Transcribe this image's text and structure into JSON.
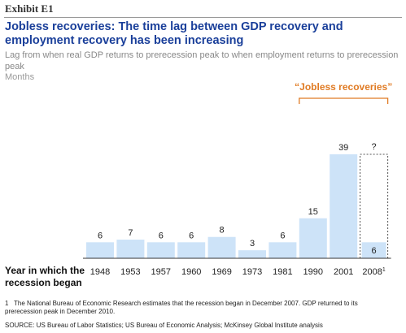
{
  "header": {
    "exhibit": "Exhibit E1",
    "title": "Jobless recoveries: The time lag between GDP recovery and employment recovery has been increasing",
    "subtitle": "Lag from when real GDP returns to prerecession peak to when employment returns to prerecession peak",
    "units": "Months"
  },
  "chart_data": {
    "type": "bar",
    "xlabel": "Year in which the recession began",
    "categories": [
      "1948",
      "1953",
      "1957",
      "1960",
      "1969",
      "1973",
      "1981",
      "1990",
      "2001",
      "2008"
    ],
    "category_footnote_index": 9,
    "category_footnote_mark": "1",
    "values": [
      6,
      7,
      6,
      6,
      8,
      3,
      6,
      15,
      39,
      6
    ],
    "value_labels": [
      "6",
      "7",
      "6",
      "6",
      "8",
      "3",
      "6",
      "15",
      "39",
      "6"
    ],
    "projected_label": "?",
    "ylim": [
      0,
      39
    ],
    "grid": false,
    "bar_color": "#cde3f8",
    "projected_border_color": "#555555",
    "annotation": {
      "text": "“Jobless recoveries”",
      "color": "#e07b24",
      "applies_to": [
        "1990",
        "2001",
        "2008"
      ]
    }
  },
  "footnote": {
    "mark": "1",
    "text": "The National Bureau of Economic Research estimates that the recession began in December 2007. GDP returned to its prerecession peak in December 2010."
  },
  "source": "SOURCE: US Bureau of Labor Statistics; US Bureau of Economic Analysis; McKinsey Global Institute analysis"
}
